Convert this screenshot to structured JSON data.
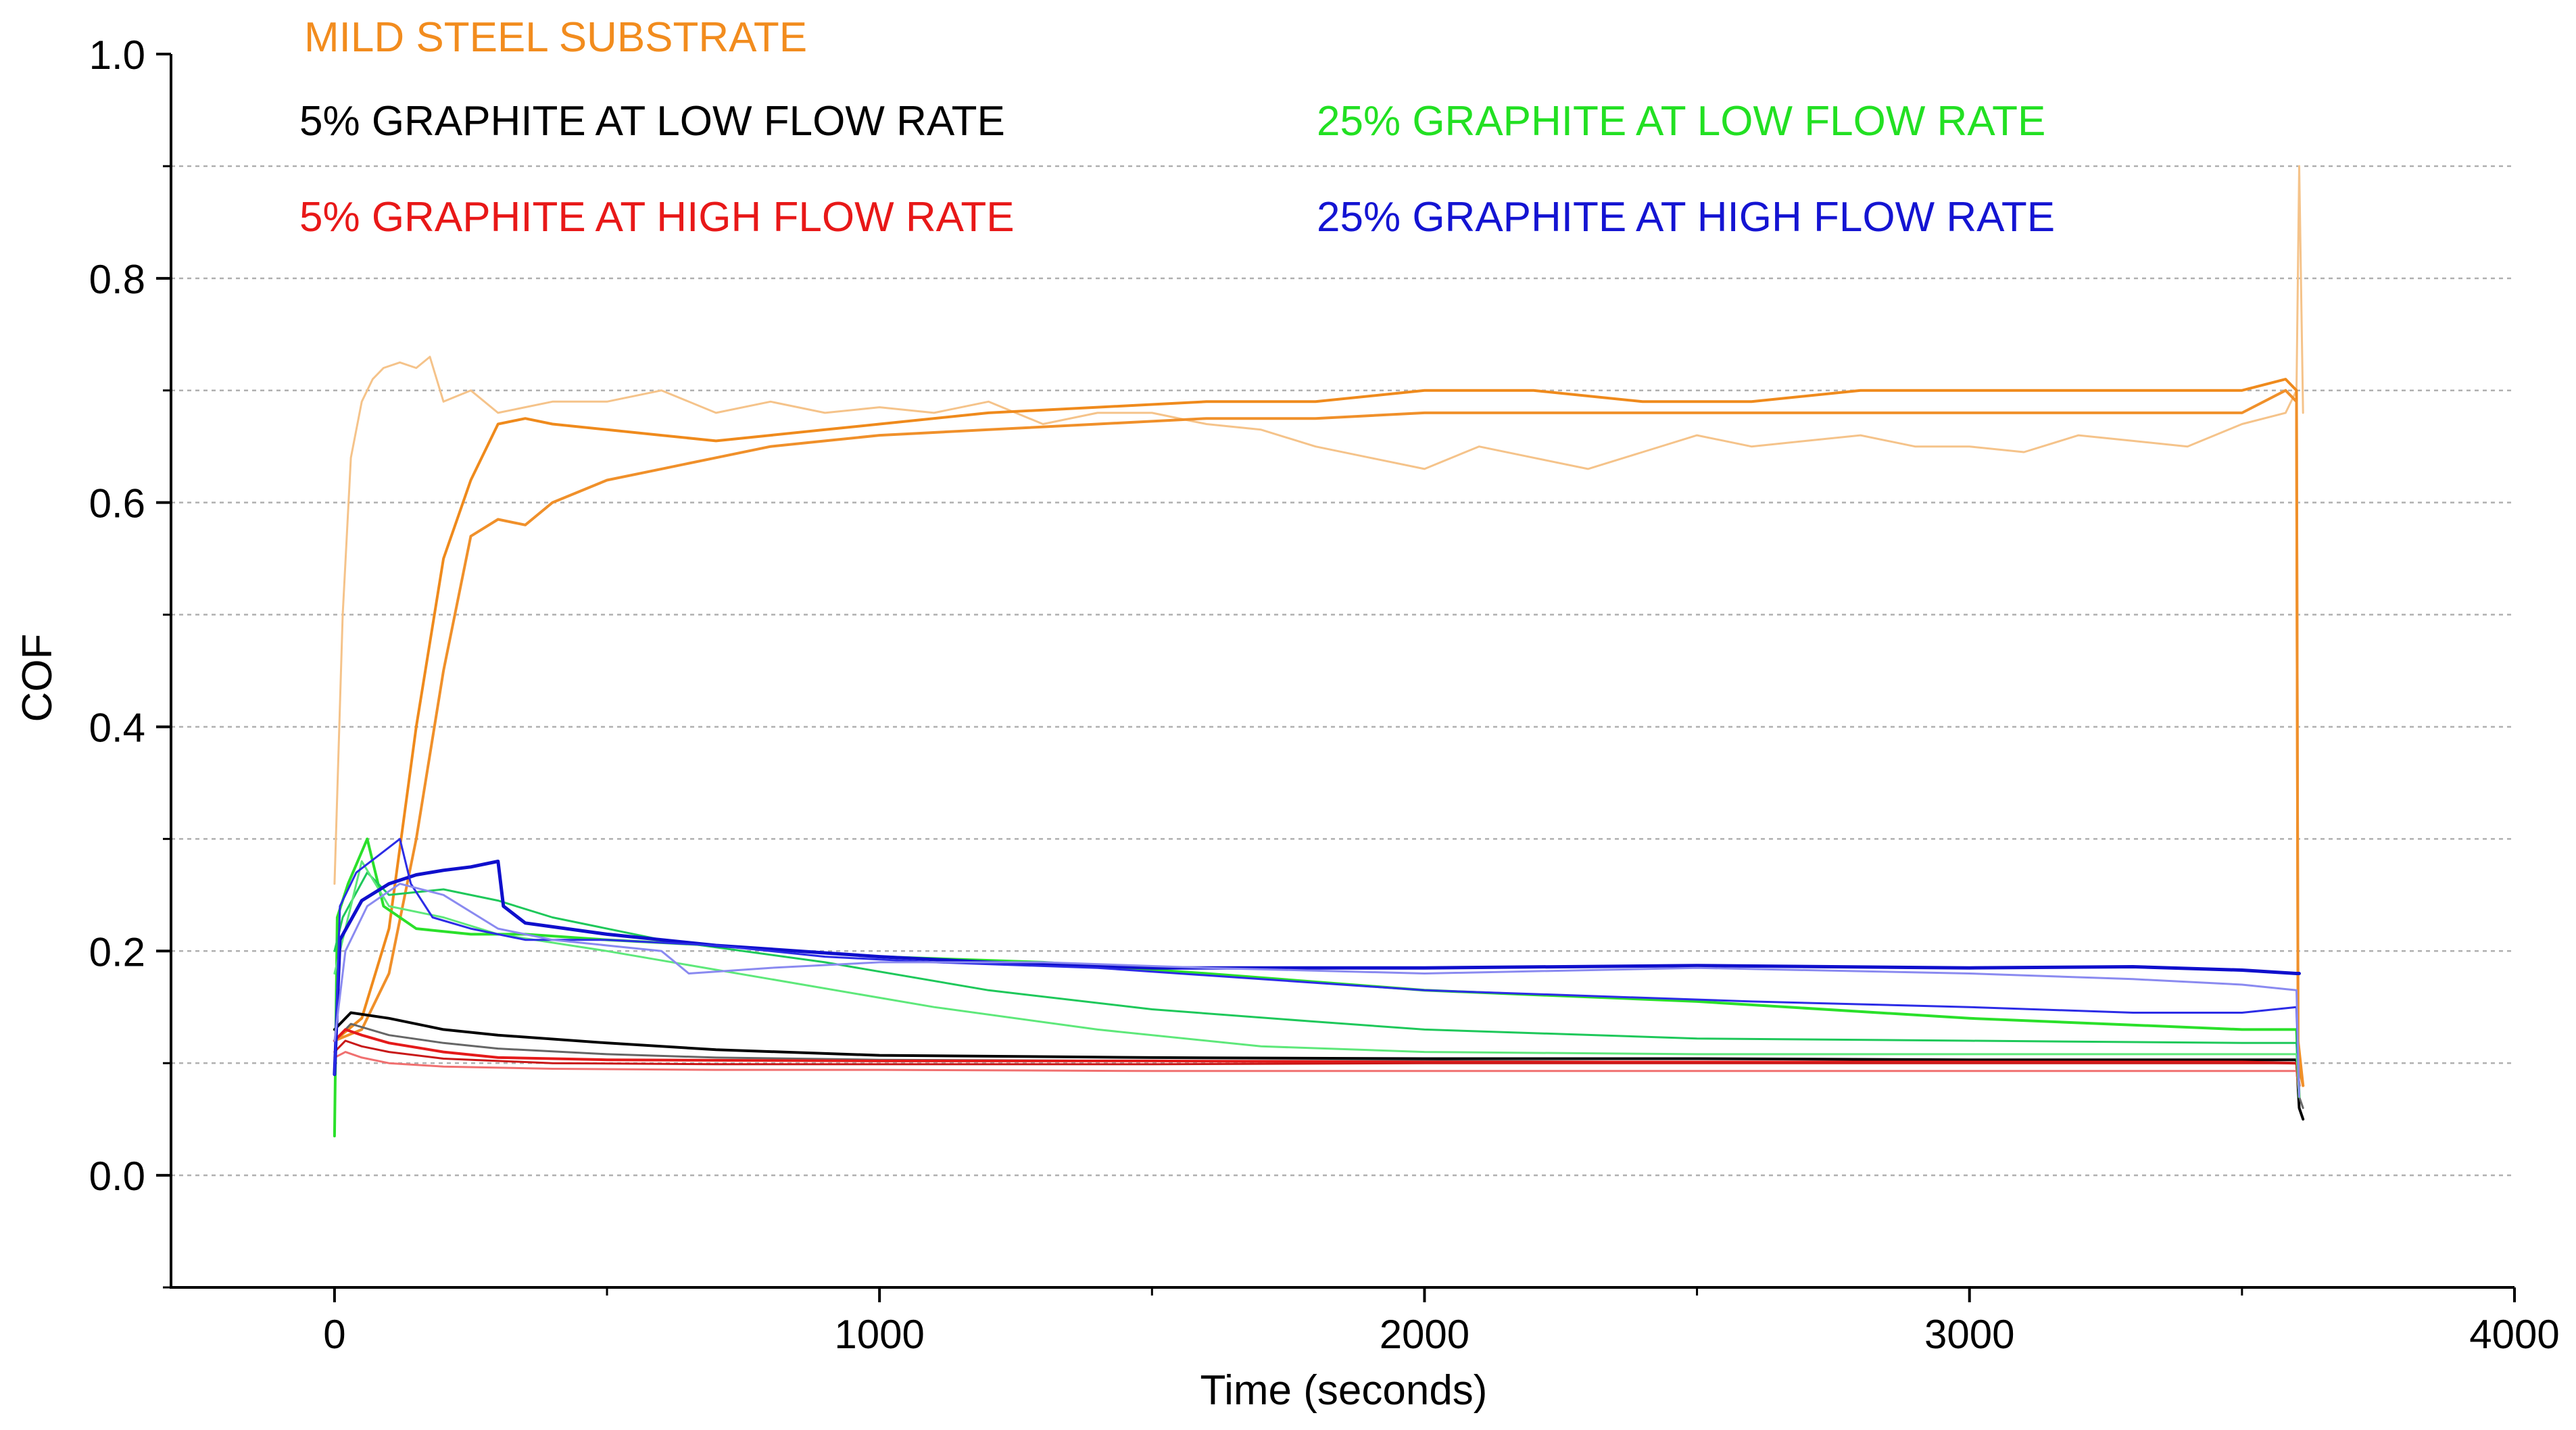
{
  "chart_data": {
    "type": "line",
    "title": "",
    "xlabel": "Time (seconds)",
    "ylabel": "COF",
    "xlim": [
      -300,
      4000
    ],
    "ylim": [
      -0.1,
      1.0
    ],
    "x_ticks": [
      0,
      1000,
      2000,
      3000,
      4000
    ],
    "x_tick_labels": [
      "0",
      "1000",
      "2000",
      "3000",
      "4000"
    ],
    "y_ticks": [
      0.0,
      0.2,
      0.4,
      0.6,
      0.8,
      1.0
    ],
    "y_tick_labels": [
      "0.0",
      "0.2",
      "0.4",
      "0.6",
      "0.8",
      "1.0"
    ],
    "gridlines": [
      0.0,
      0.1,
      0.2,
      0.3,
      0.4,
      0.5,
      0.6,
      0.7,
      0.8,
      0.9
    ],
    "legend_position": "top",
    "legend": [
      {
        "label": "MILD STEEL SUBSTRATE",
        "color": "#f28c1e"
      },
      {
        "label": "5% GRAPHITE AT LOW FLOW RATE",
        "color": "#000000"
      },
      {
        "label": "25% GRAPHITE AT LOW FLOW RATE",
        "color": "#22e022"
      },
      {
        "label": "5% GRAPHITE AT HIGH FLOW RATE",
        "color": "#e81818"
      },
      {
        "label": "25% GRAPHITE AT HIGH FLOW RATE",
        "color": "#1414d2"
      }
    ],
    "series": [
      {
        "name": "MILD STEEL SUBSTRATE (run 1)",
        "color": "#f5c38a",
        "width": 3,
        "x": [
          0,
          15,
          30,
          50,
          70,
          90,
          120,
          150,
          175,
          200,
          250,
          300,
          400,
          500,
          600,
          700,
          800,
          900,
          1000,
          1100,
          1200,
          1300,
          1400,
          1500,
          1600,
          1700,
          1800,
          1900,
          2000,
          2100,
          2200,
          2300,
          2400,
          2500,
          2600,
          2700,
          2800,
          2900,
          3000,
          3100,
          3200,
          3300,
          3400,
          3500,
          3580,
          3600,
          3605,
          3612
        ],
        "y": [
          0.26,
          0.5,
          0.64,
          0.69,
          0.71,
          0.72,
          0.725,
          0.72,
          0.73,
          0.69,
          0.7,
          0.68,
          0.69,
          0.69,
          0.7,
          0.68,
          0.69,
          0.68,
          0.685,
          0.68,
          0.69,
          0.67,
          0.68,
          0.68,
          0.67,
          0.665,
          0.65,
          0.64,
          0.63,
          0.65,
          0.64,
          0.63,
          0.645,
          0.66,
          0.65,
          0.655,
          0.66,
          0.65,
          0.65,
          0.645,
          0.66,
          0.655,
          0.65,
          0.67,
          0.68,
          0.7,
          0.9,
          0.68
        ]
      },
      {
        "name": "MILD STEEL SUBSTRATE (run 2)",
        "color": "#ef8a1c",
        "width": 4,
        "x": [
          0,
          50,
          100,
          150,
          200,
          250,
          300,
          350,
          400,
          500,
          600,
          700,
          800,
          900,
          1000,
          1200,
          1400,
          1600,
          1800,
          2000,
          2200,
          2400,
          2600,
          2800,
          3000,
          3200,
          3400,
          3500,
          3580,
          3600,
          3603,
          3612
        ],
        "y": [
          0.12,
          0.14,
          0.22,
          0.4,
          0.55,
          0.62,
          0.67,
          0.675,
          0.67,
          0.665,
          0.66,
          0.655,
          0.66,
          0.665,
          0.67,
          0.68,
          0.685,
          0.69,
          0.69,
          0.7,
          0.7,
          0.69,
          0.69,
          0.7,
          0.7,
          0.7,
          0.7,
          0.7,
          0.71,
          0.7,
          0.1,
          0.08
        ]
      },
      {
        "name": "MILD STEEL SUBSTRATE (run 3)",
        "color": "#f0902a",
        "width": 4,
        "x": [
          0,
          50,
          100,
          150,
          200,
          250,
          300,
          350,
          400,
          500,
          600,
          700,
          800,
          900,
          1000,
          1200,
          1400,
          1600,
          1800,
          2000,
          2200,
          2400,
          2600,
          2800,
          3000,
          3200,
          3400,
          3500,
          3580,
          3600,
          3603,
          3612
        ],
        "y": [
          0.12,
          0.13,
          0.18,
          0.3,
          0.45,
          0.57,
          0.585,
          0.58,
          0.6,
          0.62,
          0.63,
          0.64,
          0.65,
          0.655,
          0.66,
          0.665,
          0.67,
          0.675,
          0.675,
          0.68,
          0.68,
          0.68,
          0.68,
          0.68,
          0.68,
          0.68,
          0.68,
          0.68,
          0.7,
          0.69,
          0.12,
          0.08
        ]
      },
      {
        "name": "5% GRAPHITE AT LOW FLOW RATE (run 1)",
        "color": "#000000",
        "width": 4,
        "x": [
          0,
          30,
          100,
          200,
          300,
          500,
          700,
          1000,
          1500,
          2000,
          2500,
          3000,
          3500,
          3600,
          3605,
          3612
        ],
        "y": [
          0.13,
          0.145,
          0.14,
          0.13,
          0.125,
          0.118,
          0.112,
          0.107,
          0.105,
          0.104,
          0.104,
          0.103,
          0.103,
          0.103,
          0.06,
          0.05
        ]
      },
      {
        "name": "5% GRAPHITE AT LOW FLOW RATE (run 2)",
        "color": "#666666",
        "width": 3,
        "x": [
          0,
          30,
          100,
          200,
          300,
          500,
          700,
          1000,
          1500,
          2000,
          2500,
          3000,
          3500,
          3600,
          3605,
          3612
        ],
        "y": [
          0.12,
          0.135,
          0.125,
          0.118,
          0.113,
          0.108,
          0.105,
          0.103,
          0.102,
          0.102,
          0.101,
          0.101,
          0.101,
          0.1,
          0.07,
          0.06
        ]
      },
      {
        "name": "5% GRAPHITE AT HIGH FLOW RATE (run 1)",
        "color": "#e41a1a",
        "width": 4,
        "x": [
          0,
          20,
          50,
          100,
          200,
          300,
          500,
          1000,
          1500,
          2000,
          2500,
          3000,
          3500,
          3600,
          3605
        ],
        "y": [
          0.12,
          0.13,
          0.125,
          0.118,
          0.11,
          0.105,
          0.103,
          0.102,
          0.102,
          0.101,
          0.101,
          0.101,
          0.101,
          0.1,
          0.08
        ]
      },
      {
        "name": "5% GRAPHITE AT HIGH FLOW RATE (run 2)",
        "color": "#f07070",
        "width": 3,
        "x": [
          0,
          20,
          50,
          100,
          200,
          400,
          700,
          1000,
          1500,
          2000,
          2500,
          3000,
          3500,
          3600,
          3605
        ],
        "y": [
          0.105,
          0.11,
          0.105,
          0.1,
          0.097,
          0.095,
          0.094,
          0.094,
          0.093,
          0.093,
          0.093,
          0.093,
          0.093,
          0.093,
          0.07
        ]
      },
      {
        "name": "5% GRAPHITE AT HIGH FLOW RATE (run 3)",
        "color": "#c81818",
        "width": 3,
        "x": [
          0,
          20,
          50,
          100,
          200,
          400,
          700,
          1000,
          1500,
          2000,
          2500,
          3000,
          3500,
          3600,
          3605
        ],
        "y": [
          0.11,
          0.12,
          0.115,
          0.11,
          0.104,
          0.1,
          0.099,
          0.099,
          0.099,
          0.1,
          0.1,
          0.1,
          0.1,
          0.1,
          0.07
        ]
      },
      {
        "name": "25% GRAPHITE AT LOW FLOW RATE (run 1)",
        "color": "#2ae02a",
        "width": 4,
        "x": [
          0,
          5,
          25,
          60,
          90,
          150,
          250,
          350,
          500,
          700,
          1000,
          1300,
          1600,
          2000,
          2500,
          3000,
          3500,
          3600,
          3605
        ],
        "y": [
          0.035,
          0.23,
          0.26,
          0.3,
          0.24,
          0.22,
          0.215,
          0.215,
          0.21,
          0.205,
          0.195,
          0.19,
          0.18,
          0.165,
          0.155,
          0.14,
          0.13,
          0.13,
          0.07
        ]
      },
      {
        "name": "25% GRAPHITE AT LOW FLOW RATE (run 2)",
        "color": "#1ec85a",
        "width": 3,
        "x": [
          0,
          15,
          60,
          100,
          200,
          300,
          400,
          600,
          900,
          1200,
          1500,
          1800,
          2000,
          2500,
          3000,
          3500,
          3600,
          3605
        ],
        "y": [
          0.2,
          0.23,
          0.27,
          0.25,
          0.255,
          0.245,
          0.23,
          0.21,
          0.19,
          0.165,
          0.148,
          0.137,
          0.13,
          0.122,
          0.12,
          0.118,
          0.118,
          0.07
        ]
      },
      {
        "name": "25% GRAPHITE AT LOW FLOW RATE (run 3)",
        "color": "#5ee87a",
        "width": 3,
        "x": [
          0,
          20,
          50,
          100,
          200,
          300,
          500,
          800,
          1100,
          1400,
          1700,
          2000,
          2500,
          3000,
          3500,
          3600,
          3605
        ],
        "y": [
          0.18,
          0.22,
          0.28,
          0.24,
          0.23,
          0.215,
          0.2,
          0.175,
          0.15,
          0.13,
          0.115,
          0.11,
          0.108,
          0.108,
          0.108,
          0.108,
          0.07
        ]
      },
      {
        "name": "25% GRAPHITE AT HIGH FLOW RATE (run 1)",
        "color": "#0f0fcc",
        "width": 5,
        "x": [
          0,
          10,
          50,
          100,
          150,
          200,
          250,
          300,
          310,
          350,
          500,
          700,
          1000,
          1200,
          1500,
          1800,
          2000,
          2500,
          3000,
          3300,
          3500,
          3600,
          3605
        ],
        "y": [
          0.09,
          0.21,
          0.245,
          0.26,
          0.268,
          0.272,
          0.275,
          0.28,
          0.24,
          0.225,
          0.215,
          0.205,
          0.195,
          0.19,
          0.185,
          0.185,
          0.185,
          0.187,
          0.185,
          0.186,
          0.183,
          0.18,
          0.18
        ]
      },
      {
        "name": "25% GRAPHITE AT HIGH FLOW RATE (run 2)",
        "color": "#2c2ce6",
        "width": 3,
        "x": [
          0,
          10,
          40,
          80,
          120,
          140,
          180,
          250,
          350,
          500,
          700,
          900,
          1100,
          1400,
          1700,
          2000,
          2300,
          2600,
          3000,
          3300,
          3500,
          3600,
          3605
        ],
        "y": [
          0.09,
          0.24,
          0.27,
          0.285,
          0.3,
          0.26,
          0.23,
          0.22,
          0.21,
          0.21,
          0.205,
          0.195,
          0.19,
          0.185,
          0.175,
          0.165,
          0.16,
          0.155,
          0.15,
          0.145,
          0.145,
          0.15,
          0.07
        ]
      },
      {
        "name": "25% GRAPHITE AT HIGH FLOW RATE (run 3)",
        "color": "#8a8af0",
        "width": 3,
        "x": [
          0,
          20,
          60,
          120,
          200,
          300,
          400,
          600,
          650,
          800,
          1000,
          1300,
          1600,
          2000,
          2500,
          3000,
          3300,
          3500,
          3600,
          3605
        ],
        "y": [
          0.12,
          0.2,
          0.24,
          0.26,
          0.25,
          0.22,
          0.21,
          0.2,
          0.18,
          0.185,
          0.19,
          0.19,
          0.185,
          0.18,
          0.185,
          0.18,
          0.175,
          0.17,
          0.165,
          0.07
        ]
      }
    ]
  }
}
